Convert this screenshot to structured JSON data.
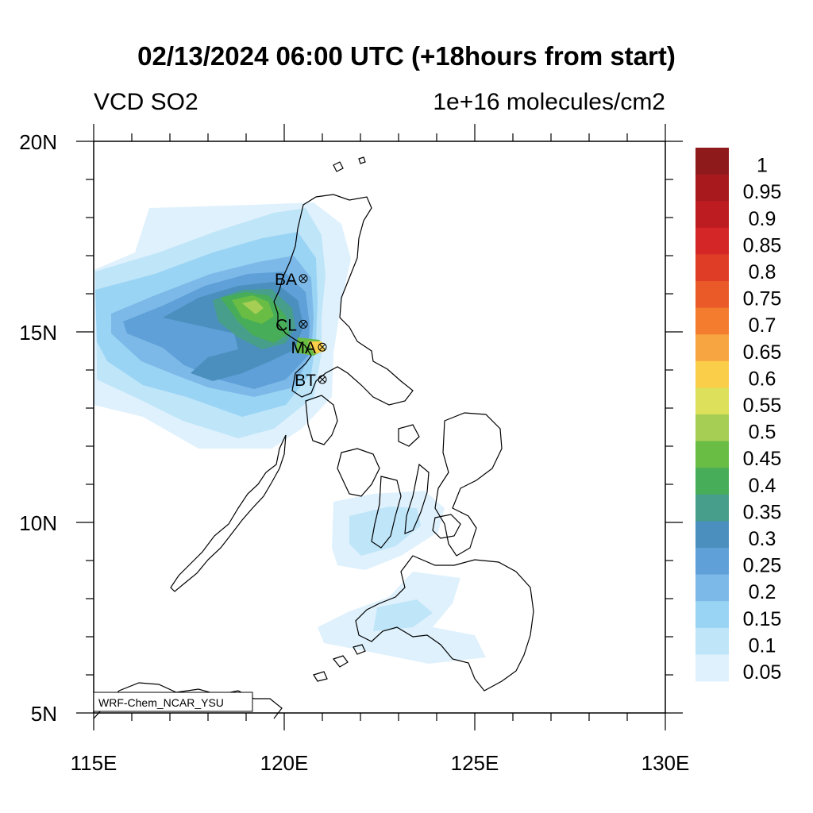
{
  "header": {
    "title": "02/13/2024 06:00 UTC (+18hours from start)",
    "variable": "VCD SO2",
    "units": "1e+16 molecules/cm2"
  },
  "map": {
    "lon_range": [
      115,
      130
    ],
    "lat_range": [
      5,
      20
    ],
    "x_ticks": [
      "115E",
      "120E",
      "125E",
      "130E"
    ],
    "y_ticks": [
      "20N",
      "15N",
      "10N",
      "5N"
    ],
    "model_label": "WRF-Chem_NCAR_YSU",
    "stations": [
      {
        "code": "BA",
        "lon": 120.5,
        "lat": 16.4
      },
      {
        "code": "CL",
        "lon": 120.5,
        "lat": 15.2
      },
      {
        "code": "MA",
        "lon": 121.0,
        "lat": 14.6
      },
      {
        "code": "BT",
        "lon": 121.0,
        "lat": 13.75
      }
    ]
  },
  "legend": {
    "levels": [
      "1",
      "0.95",
      "0.9",
      "0.85",
      "0.8",
      "0.75",
      "0.7",
      "0.65",
      "0.6",
      "0.55",
      "0.5",
      "0.45",
      "0.4",
      "0.35",
      "0.3",
      "0.25",
      "0.2",
      "0.15",
      "0.1",
      "0.05"
    ],
    "colors": [
      "#8e1a1c",
      "#a7191d",
      "#bd1c20",
      "#d42527",
      "#e03d27",
      "#ea5a28",
      "#f47c2e",
      "#f7a541",
      "#fbce4a",
      "#dde05a",
      "#a6cd54",
      "#69bd45",
      "#47ad58",
      "#479e8a",
      "#4a8fbe",
      "#5ea0d7",
      "#7db9e8",
      "#9ad4f4",
      "#bfe5f9",
      "#dff1fc"
    ]
  }
}
